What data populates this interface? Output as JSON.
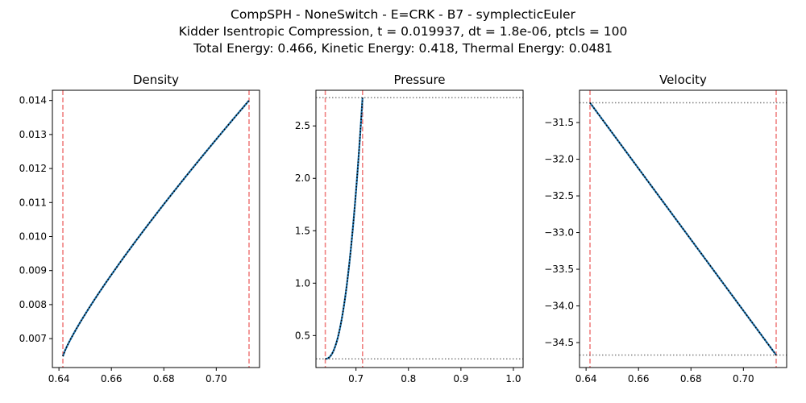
{
  "figure": {
    "title_lines": [
      "CompSPH - NoneSwitch - E=CRK - B7 - symplecticEuler",
      "Kidder Isentropic Compression, t = 0.019937, dt = 1.8e-06, ptcls = 100",
      "Total Energy: 0.466, Kinetic Energy: 0.418, Thermal Energy: 0.0481"
    ]
  },
  "colors": {
    "data_line": "#1f77b4",
    "exact_line": "#000000",
    "boundary_line": "#f08080",
    "reference_line": "#808080"
  },
  "chart_data": [
    {
      "type": "line",
      "title": "Density",
      "xlim": [
        0.6375,
        0.7165
      ],
      "ylim": [
        0.00615,
        0.0143
      ],
      "xticks": [
        0.64,
        0.66,
        0.68,
        0.7
      ],
      "xtick_labels": [
        "0.64",
        "0.66",
        "0.68",
        "0.70"
      ],
      "yticks": [
        0.007,
        0.008,
        0.009,
        0.01,
        0.011,
        0.012,
        0.013,
        0.014
      ],
      "ytick_labels": [
        "0.007",
        "0.008",
        "0.009",
        "0.010",
        "0.011",
        "0.012",
        "0.013",
        "0.014"
      ],
      "vlines": [
        0.6415,
        0.7125
      ],
      "hlines": [],
      "series": [
        {
          "style": "data",
          "curve": "power",
          "exponent": 0.85,
          "x": [
            0.6415,
            0.7125
          ],
          "y": [
            0.00648,
            0.014
          ],
          "n": 100
        },
        {
          "style": "exact",
          "curve": "power",
          "exponent": 0.85,
          "x": [
            0.6415,
            0.7125
          ],
          "y": [
            0.00648,
            0.014
          ],
          "n": 100
        }
      ]
    },
    {
      "type": "line",
      "title": "Pressure",
      "xlim": [
        0.6237,
        1.0185
      ],
      "ylim": [
        0.195,
        2.84
      ],
      "xticks": [
        0.7,
        0.8,
        0.9,
        1.0
      ],
      "xtick_labels": [
        "0.7",
        "0.8",
        "0.9",
        "1.0"
      ],
      "yticks": [
        0.5,
        1.0,
        1.5,
        2.0,
        2.5
      ],
      "ytick_labels": [
        "0.5",
        "1.0",
        "1.5",
        "2.0",
        "2.5"
      ],
      "vlines": [
        0.6415,
        0.7125
      ],
      "hlines": [
        2.77,
        0.278
      ],
      "series": [
        {
          "style": "data",
          "curve": "power",
          "exponent": 2.3,
          "x": [
            0.6415,
            0.7125
          ],
          "y": [
            0.278,
            2.77
          ],
          "n": 100
        },
        {
          "style": "exact",
          "curve": "power",
          "exponent": 2.3,
          "x": [
            0.6415,
            0.7125
          ],
          "y": [
            0.278,
            2.77
          ],
          "n": 100
        }
      ]
    },
    {
      "type": "line",
      "title": "Velocity",
      "xlim": [
        0.6375,
        0.7165
      ],
      "ylim": [
        -34.84,
        -31.06
      ],
      "xticks": [
        0.64,
        0.66,
        0.68,
        0.7
      ],
      "xtick_labels": [
        "0.64",
        "0.66",
        "0.68",
        "0.70"
      ],
      "yticks": [
        -34.5,
        -34.0,
        -33.5,
        -33.0,
        -32.5,
        -32.0,
        -31.5
      ],
      "ytick_labels": [
        "−34.5",
        "−34.0",
        "−33.5",
        "−33.0",
        "−32.5",
        "−32.0",
        "−31.5"
      ],
      "vlines": [
        0.6415,
        0.7125
      ],
      "hlines": [
        -31.23,
        -34.67
      ],
      "series": [
        {
          "style": "data",
          "curve": "power",
          "exponent": 1.0,
          "x": [
            0.6415,
            0.7125
          ],
          "y": [
            -31.23,
            -34.67
          ],
          "n": 100
        },
        {
          "style": "exact",
          "curve": "power",
          "exponent": 1.0,
          "x": [
            0.6415,
            0.7125
          ],
          "y": [
            -31.23,
            -34.67
          ],
          "n": 100
        }
      ]
    }
  ]
}
